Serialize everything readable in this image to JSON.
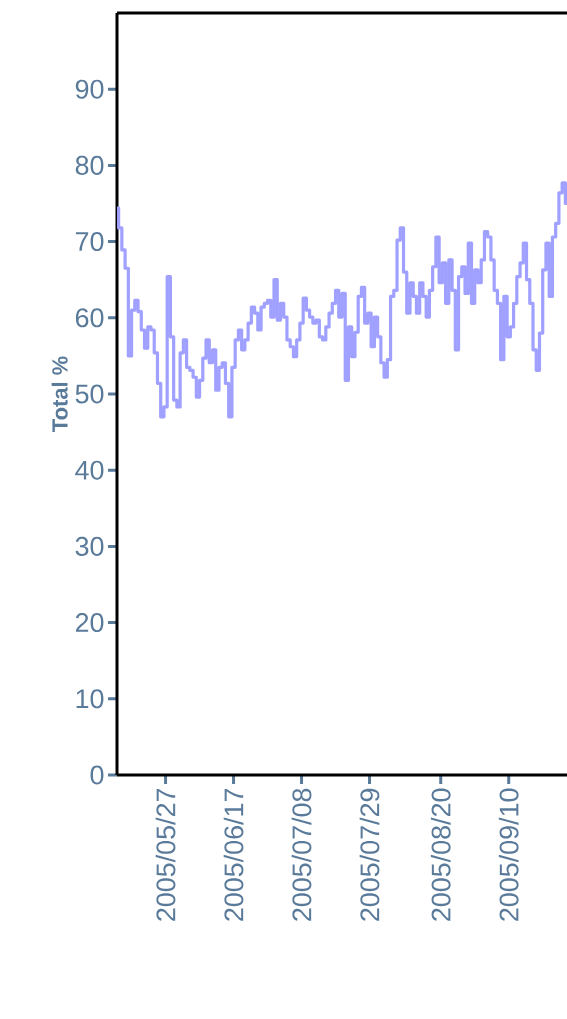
{
  "chart_data": {
    "type": "step",
    "ylabel": "Total %",
    "x": [
      "2005-05-12",
      "2005-05-13",
      "2005-05-14",
      "2005-05-15",
      "2005-05-16",
      "2005-05-17",
      "2005-05-18",
      "2005-05-19",
      "2005-05-20",
      "2005-05-21",
      "2005-05-22",
      "2005-05-23",
      "2005-05-24",
      "2005-05-25",
      "2005-05-26",
      "2005-05-27",
      "2005-05-28",
      "2005-05-29",
      "2005-05-30",
      "2005-05-31",
      "2005-06-01",
      "2005-06-02",
      "2005-06-03",
      "2005-06-04",
      "2005-06-05",
      "2005-06-06",
      "2005-06-07",
      "2005-06-08",
      "2005-06-09",
      "2005-06-10",
      "2005-06-11",
      "2005-06-12",
      "2005-06-13",
      "2005-06-14",
      "2005-06-15",
      "2005-06-16",
      "2005-06-17",
      "2005-06-18",
      "2005-06-19",
      "2005-06-20",
      "2005-06-21",
      "2005-06-22",
      "2005-06-23",
      "2005-06-24",
      "2005-06-25",
      "2005-06-26",
      "2005-06-27",
      "2005-06-28",
      "2005-06-29",
      "2005-06-30",
      "2005-07-01",
      "2005-07-02",
      "2005-07-03",
      "2005-07-04",
      "2005-07-05",
      "2005-07-06",
      "2005-07-07",
      "2005-07-08",
      "2005-07-09",
      "2005-07-10",
      "2005-07-11",
      "2005-07-12",
      "2005-07-13",
      "2005-07-14",
      "2005-07-15",
      "2005-07-16",
      "2005-07-17",
      "2005-07-18",
      "2005-07-19",
      "2005-07-20",
      "2005-07-21",
      "2005-07-22",
      "2005-07-23",
      "2005-07-24",
      "2005-07-25",
      "2005-07-26",
      "2005-07-27",
      "2005-07-28",
      "2005-07-29",
      "2005-07-30",
      "2005-07-31",
      "2005-08-01",
      "2005-08-02",
      "2005-08-03",
      "2005-08-04",
      "2005-08-05",
      "2005-08-06",
      "2005-08-07",
      "2005-08-08",
      "2005-08-09",
      "2005-08-10",
      "2005-08-11",
      "2005-08-12",
      "2005-08-13",
      "2005-08-14",
      "2005-08-15",
      "2005-08-16",
      "2005-08-17",
      "2005-08-18",
      "2005-08-19",
      "2005-08-20",
      "2005-08-21",
      "2005-08-22",
      "2005-08-23",
      "2005-08-24",
      "2005-08-25",
      "2005-08-26",
      "2005-08-27",
      "2005-08-28",
      "2005-08-29",
      "2005-08-30",
      "2005-08-31",
      "2005-09-01",
      "2005-09-02",
      "2005-09-03",
      "2005-09-04",
      "2005-09-05",
      "2005-09-06",
      "2005-09-07",
      "2005-09-08",
      "2005-09-09",
      "2005-09-10",
      "2005-09-11",
      "2005-09-12",
      "2005-09-13",
      "2005-09-14",
      "2005-09-15",
      "2005-09-16",
      "2005-09-17",
      "2005-09-18",
      "2005-09-19",
      "2005-09-20",
      "2005-09-21",
      "2005-09-22",
      "2005-09-23",
      "2005-09-24",
      "2005-09-25",
      "2005-09-26",
      "2005-09-27",
      "2005-09-28"
    ],
    "series": [
      {
        "color": "#9fa0ff",
        "values": [
          74.4,
          71.8,
          68.9,
          66.5,
          55.0,
          61.0,
          62.3,
          60.8,
          58.4,
          56.0,
          58.8,
          58.4,
          55.4,
          51.4,
          47.0,
          48.3,
          65.4,
          57.5,
          49.2,
          48.3,
          55.4,
          57.1,
          53.5,
          53.1,
          52.2,
          49.6,
          51.8,
          54.7,
          57.1,
          54.1,
          55.8,
          50.5,
          53.5,
          54.1,
          51.4,
          47.0,
          53.5,
          57.1,
          58.4,
          55.8,
          57.1,
          59.3,
          61.4,
          60.6,
          58.4,
          61.4,
          61.9,
          62.3,
          60.1,
          65.0,
          59.7,
          61.9,
          60.1,
          57.1,
          56.2,
          54.9,
          57.1,
          59.3,
          62.6,
          61.0,
          60.1,
          59.3,
          59.7,
          57.5,
          57.1,
          58.8,
          60.6,
          61.9,
          63.6,
          60.1,
          63.2,
          51.8,
          58.8,
          54.9,
          58.1,
          62.8,
          64.0,
          59.3,
          60.6,
          56.2,
          60.1,
          57.5,
          54.1,
          52.2,
          54.5,
          62.8,
          63.6,
          70.2,
          71.8,
          66.0,
          60.6,
          64.6,
          62.8,
          60.6,
          64.6,
          62.8,
          60.1,
          63.6,
          66.7,
          70.6,
          64.6,
          67.2,
          61.9,
          67.6,
          63.6,
          55.8,
          65.4,
          66.7,
          63.2,
          69.8,
          61.9,
          66.3,
          64.6,
          67.6,
          71.3,
          70.6,
          67.6,
          63.6,
          61.9,
          54.5,
          62.8,
          57.5,
          58.8,
          61.9,
          65.4,
          67.2,
          69.8,
          65.0,
          61.9,
          55.8,
          53.1,
          58.0,
          66.3,
          69.8,
          62.8,
          70.6,
          72.4,
          76.4,
          77.7,
          75.0
        ]
      }
    ],
    "xlim": [
      "2005-05-12",
      "2005-09-28"
    ],
    "xticks": [
      {
        "value": "2005-05-27",
        "label": "2005/05/27"
      },
      {
        "value": "2005-06-17",
        "label": "2005/06/17"
      },
      {
        "value": "2005-07-08",
        "label": "2005/07/08"
      },
      {
        "value": "2005-07-29",
        "label": "2005/07/29"
      },
      {
        "value": "2005-08-20",
        "label": "2005/08/20"
      },
      {
        "value": "2005-09-10",
        "label": "2005/09/10"
      }
    ],
    "ylim": [
      0,
      100
    ],
    "yticks": [
      0,
      10,
      20,
      30,
      40,
      50,
      60,
      70,
      80,
      90
    ]
  }
}
